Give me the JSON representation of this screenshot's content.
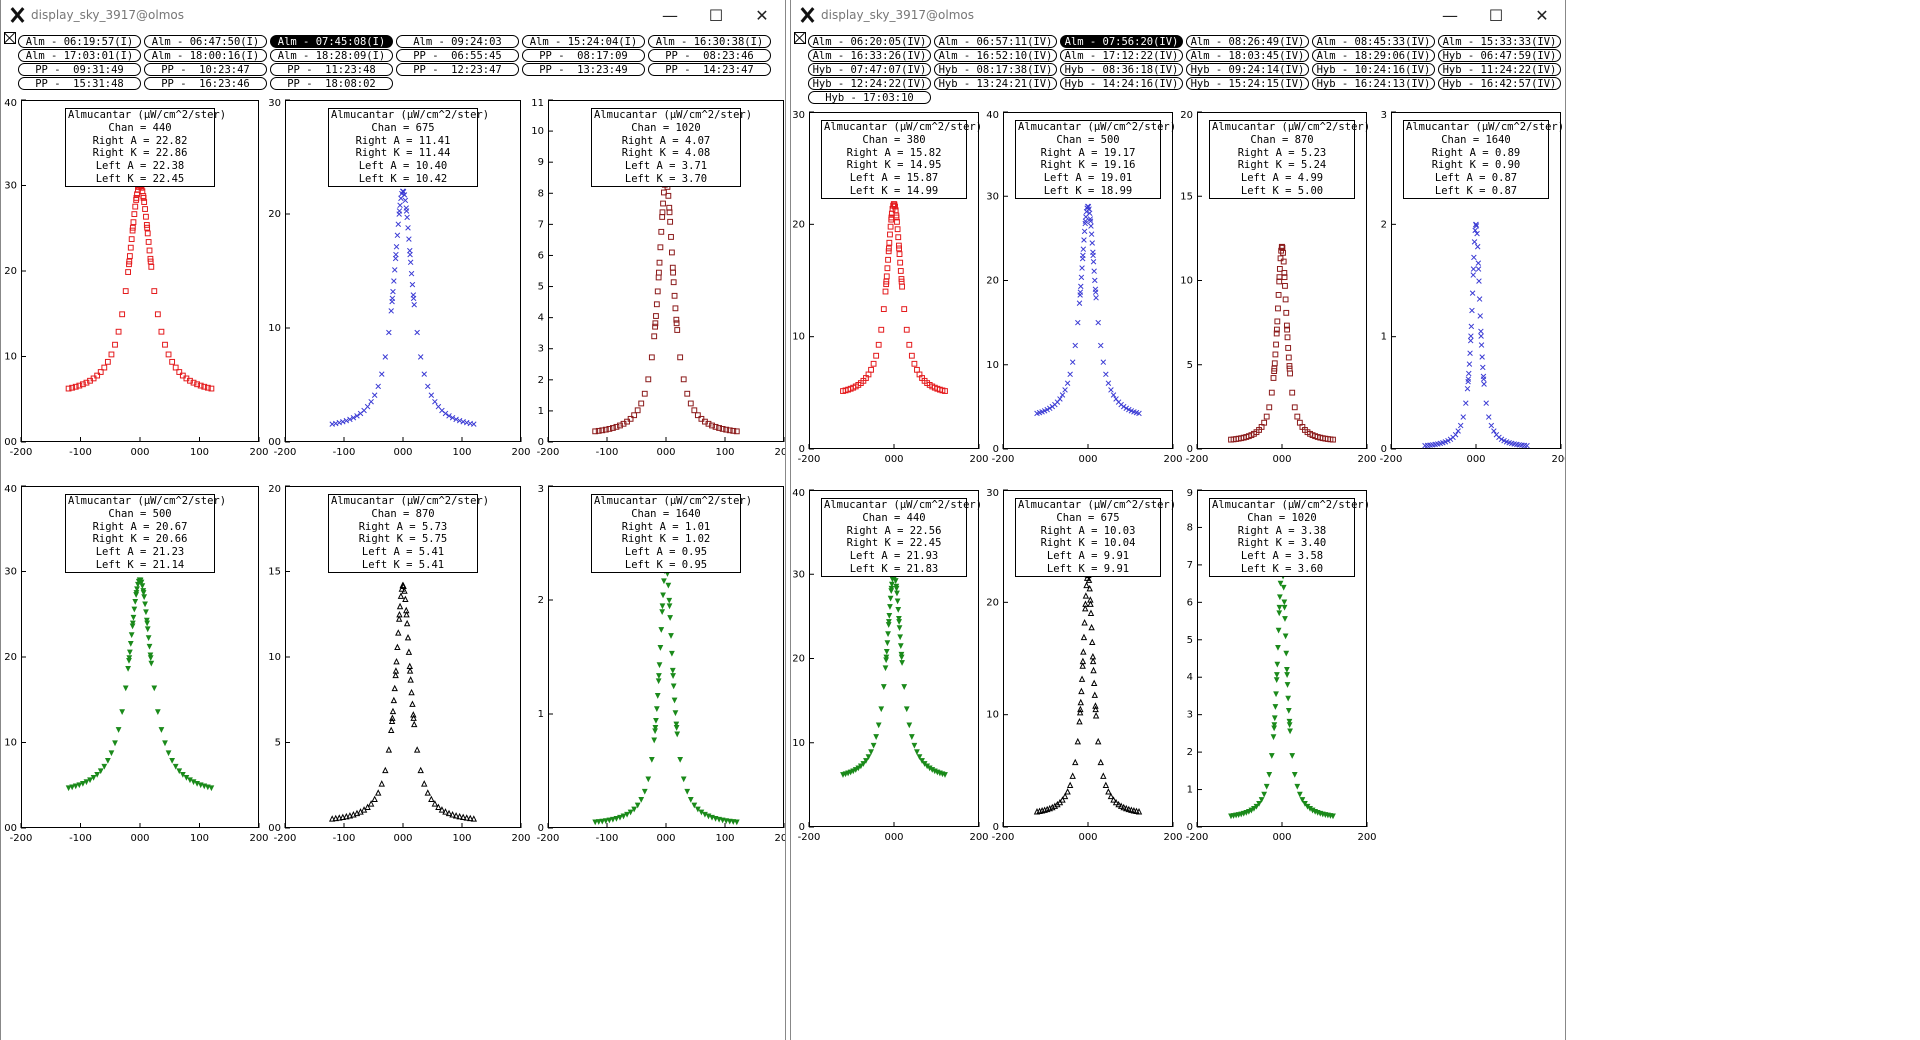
{
  "windows": [
    {
      "title": "display_sky_3917@olmos",
      "controls": {
        "minimize": "—",
        "maximize": "☐",
        "close": "✕"
      },
      "button_rows": [
        [
          "Alm - 06:19:57(I)",
          "Alm - 06:47:50(I)",
          "Alm - 07:45:08(I)",
          "Alm - 09:24:03",
          "Alm - 15:24:04(I)",
          "Alm - 16:30:38(I)"
        ],
        [
          "Alm - 17:03:01(I)",
          "Alm - 18:00:16(I)",
          "Alm - 18:28:09(I)",
          "PP -  06:55:45",
          "PP -  08:17:09",
          "PP -  08:23:46"
        ],
        [
          "PP -  09:31:49",
          "PP -  10:23:47",
          "PP -  11:23:48",
          "PP -  12:23:47",
          "PP -  13:23:49",
          "PP -  14:23:47"
        ],
        [
          "PP -  15:31:48",
          "PP -  16:23:46",
          "PP -  18:08:02"
        ]
      ],
      "selected_button": "Alm - 07:45:08(I)"
    },
    {
      "title": "display_sky_3917@olmos",
      "controls": {
        "minimize": "—",
        "maximize": "☐",
        "close": "✕"
      },
      "button_rows": [
        [
          "Alm - 06:20:05(IV)",
          "Alm - 06:57:11(IV)",
          "Alm - 07:56:20(IV)",
          "Alm - 08:26:49(IV)",
          "Alm - 08:45:33(IV)",
          "Alm - 15:33:33(IV)"
        ],
        [
          "Alm - 16:33:26(IV)",
          "Alm - 16:52:10(IV)",
          "Alm - 17:12:22(IV)",
          "Alm - 18:03:45(IV)",
          "Alm - 18:29:06(IV)",
          "Hyb - 06:47:59(IV)"
        ],
        [
          "Hyb - 07:47:07(IV)",
          "Hyb - 08:17:38(IV)",
          "Hyb - 08:36:18(IV)",
          "Hyb - 09:24:14(IV)",
          "Hyb - 10:24:16(IV)",
          "Hyb - 11:24:22(IV)"
        ],
        [
          "Hyb - 12:24:22(IV)",
          "Hyb - 13:24:21(IV)",
          "Hyb - 14:24:16(IV)",
          "Hyb - 15:24:15(IV)",
          "Hyb - 16:24:13(IV)",
          "Hyb - 16:42:57(IV)"
        ],
        [
          "Hyb - 17:03:10"
        ]
      ],
      "selected_button": "Alm - 07:56:20(IV)"
    }
  ],
  "colors": {
    "red": "#e41a1c",
    "blue": "#3b3bd4",
    "darkred": "#8b1a1a",
    "green": "#1a8a1a",
    "black": "#000000"
  },
  "chart_data": [
    {
      "type": "scatter",
      "window": 0,
      "marker": "square",
      "color": "#e41a1c",
      "peak": 30.0,
      "floor": 5.3,
      "width": 24,
      "ylim": [
        0,
        40
      ],
      "xlim": [
        -200,
        200
      ],
      "yticks": [
        "00",
        "10",
        "20",
        "30",
        "40"
      ],
      "xticks": [
        "-200",
        "-100",
        "000",
        "100",
        "200"
      ],
      "legend": [
        "Almucantar (µW/cm^2/ster)",
        "Chan = 440",
        "Right A = 22.82",
        "Right K = 22.86",
        "Left A = 22.38",
        "Left K = 22.45"
      ]
    },
    {
      "type": "scatter",
      "window": 0,
      "marker": "x",
      "color": "#3b3bd4",
      "peak": 22.0,
      "floor": 1.0,
      "width": 20,
      "ylim": [
        0,
        30
      ],
      "xlim": [
        -200,
        200
      ],
      "yticks": [
        "00",
        "10",
        "20",
        "30"
      ],
      "xticks": [
        "-200",
        "-100",
        "000",
        "100",
        "200"
      ],
      "legend": [
        "Almucantar (µW/cm^2/ster)",
        "Chan = 675",
        "Right A = 11.41",
        "Right K = 11.44",
        "Left A = 10.40",
        "Left K = 10.42"
      ]
    },
    {
      "type": "scatter",
      "window": 0,
      "marker": "square",
      "color": "#8b1a1a",
      "peak": 8.4,
      "floor": 0.2,
      "width": 16,
      "ylim": [
        0,
        11
      ],
      "xlim": [
        -200,
        200
      ],
      "yticks": [
        "0",
        "1",
        "2",
        "3",
        "4",
        "5",
        "6",
        "7",
        "8",
        "9",
        "10",
        "11"
      ],
      "xticks": [
        "-200",
        "-100",
        "000",
        "100",
        "200"
      ],
      "legend": [
        "Almucantar (µW/cm^2/ster)",
        "Chan = 1020",
        "Right A = 4.07",
        "Right K = 4.08",
        "Left A = 3.71",
        "Left K = 3.70"
      ]
    },
    {
      "type": "scatter",
      "window": 0,
      "marker": "tri-down",
      "color": "#1a8a1a",
      "peak": 29.0,
      "floor": 3.7,
      "width": 24,
      "ylim": [
        0,
        40
      ],
      "xlim": [
        -200,
        200
      ],
      "yticks": [
        "00",
        "10",
        "20",
        "30",
        "40"
      ],
      "xticks": [
        "-200",
        "-100",
        "000",
        "100",
        "200"
      ],
      "legend": [
        "Almucantar (µW/cm^2/ster)",
        "Chan = 500",
        "Right A = 20.67",
        "Right K = 20.66",
        "Left A = 21.23",
        "Left K = 21.14"
      ]
    },
    {
      "type": "scatter",
      "window": 0,
      "marker": "tri-up",
      "color": "#000000",
      "peak": 14.2,
      "floor": 0.3,
      "width": 16,
      "ylim": [
        0,
        20
      ],
      "xlim": [
        -200,
        200
      ],
      "yticks": [
        "00",
        "5",
        "10",
        "15",
        "20"
      ],
      "xticks": [
        "-200",
        "-100",
        "000",
        "100",
        "200"
      ],
      "legend": [
        "Almucantar (µW/cm^2/ster)",
        "Chan = 870",
        "Right A = 5.73",
        "Right K = 5.75",
        "Left A = 5.41",
        "Left K = 5.41"
      ]
    },
    {
      "type": "scatter",
      "window": 0,
      "marker": "tri-down",
      "color": "#1a8a1a",
      "peak": 2.3,
      "floor": 0.02,
      "width": 14,
      "ylim": [
        0,
        3
      ],
      "xlim": [
        -200,
        200
      ],
      "yticks": [
        "0",
        "1",
        "2",
        "3"
      ],
      "xticks": [
        "-200",
        "-100",
        "000",
        "100",
        "200"
      ],
      "legend": [
        "Almucantar (µW/cm^2/ster)",
        "Chan = 1640",
        "Right A = 1.01",
        "Right K = 1.02",
        "Left A = 0.95",
        "Left K = 0.95"
      ]
    },
    {
      "type": "scatter",
      "window": 1,
      "marker": "square",
      "color": "#e41a1c",
      "peak": 21.8,
      "floor": 4.6,
      "width": 22,
      "ylim": [
        0,
        30
      ],
      "xlim": [
        -200,
        200
      ],
      "yticks": [
        "0",
        "10",
        "20",
        "30"
      ],
      "xticks": [
        "-200",
        "000",
        "200"
      ],
      "legend": [
        "Almucantar (µW/cm^2/ster)",
        "Chan = 380",
        "Right A = 15.82",
        "Right K = 14.95",
        "Left A = 15.87",
        "Left K = 14.99"
      ]
    },
    {
      "type": "scatter",
      "window": 1,
      "marker": "x",
      "color": "#3b3bd4",
      "peak": 28.8,
      "floor": 3.4,
      "width": 22,
      "ylim": [
        0,
        40
      ],
      "xlim": [
        -200,
        200
      ],
      "yticks": [
        "0",
        "10",
        "20",
        "30",
        "40"
      ],
      "xticks": [
        "-200",
        "000",
        "200"
      ],
      "legend": [
        "Almucantar (µW/cm^2/ster)",
        "Chan = 500",
        "Right A = 19.17",
        "Right K = 19.16",
        "Left A = 19.01",
        "Left K = 18.99"
      ]
    },
    {
      "type": "scatter",
      "window": 1,
      "marker": "square",
      "color": "#8b1a1a",
      "peak": 12.0,
      "floor": 0.4,
      "width": 14,
      "ylim": [
        0,
        20
      ],
      "xlim": [
        -200,
        200
      ],
      "yticks": [
        "0",
        "5",
        "10",
        "15",
        "20"
      ],
      "xticks": [
        "-200",
        "000",
        "200"
      ],
      "legend": [
        "Almucantar (µW/cm^2/ster)",
        "Chan = 870",
        "Right A = 5.23",
        "Right K = 5.24",
        "Left A = 4.99",
        "Left K = 5.00"
      ]
    },
    {
      "type": "scatter",
      "window": 1,
      "marker": "x",
      "color": "#3b3bd4",
      "peak": 2.0,
      "floor": 0.01,
      "width": 12,
      "ylim": [
        0,
        3
      ],
      "xlim": [
        -200,
        200
      ],
      "yticks": [
        "0",
        "1",
        "2",
        "3"
      ],
      "xticks": [
        "-200",
        "000",
        "200"
      ],
      "legend": [
        "Almucantar (µW/cm^2/ster)",
        "Chan = 1640",
        "Right A = 0.89",
        "Right K = 0.90",
        "Left A = 0.87",
        "Left K = 0.87"
      ]
    },
    {
      "type": "scatter",
      "window": 1,
      "marker": "tri-down",
      "color": "#1a8a1a",
      "peak": 30.0,
      "floor": 5.4,
      "width": 22,
      "ylim": [
        0,
        40
      ],
      "xlim": [
        -200,
        200
      ],
      "yticks": [
        "0",
        "10",
        "20",
        "30",
        "40"
      ],
      "xticks": [
        "-200",
        "000",
        "200"
      ],
      "legend": [
        "Almucantar (µW/cm^2/ster)",
        "Chan = 440",
        "Right A = 22.56",
        "Right K = 22.45",
        "Left A = 21.93",
        "Left K = 21.83"
      ]
    },
    {
      "type": "scatter",
      "window": 1,
      "marker": "tri-up",
      "color": "#000000",
      "peak": 22.5,
      "floor": 1.0,
      "width": 16,
      "ylim": [
        0,
        30
      ],
      "xlim": [
        -200,
        200
      ],
      "yticks": [
        "0",
        "10",
        "20",
        "30"
      ],
      "xticks": [
        "-200",
        "000",
        "200"
      ],
      "legend": [
        "Almucantar (µW/cm^2/ster)",
        "Chan = 675",
        "Right A = 10.03",
        "Right K = 10.04",
        "Left A = 9.91",
        "Left K = 9.91"
      ]
    },
    {
      "type": "scatter",
      "window": 1,
      "marker": "tri-down",
      "color": "#1a8a1a",
      "peak": 6.9,
      "floor": 0.2,
      "width": 14,
      "ylim": [
        0,
        9
      ],
      "xlim": [
        -200,
        200
      ],
      "yticks": [
        "0",
        "1",
        "2",
        "3",
        "4",
        "5",
        "6",
        "7",
        "8",
        "9"
      ],
      "xticks": [
        "-200",
        "000",
        "200"
      ],
      "legend": [
        "Almucantar (µW/cm^2/ster)",
        "Chan = 1020",
        "Right A = 3.38",
        "Right K = 3.40",
        "Left A = 3.58",
        "Left K = 3.60"
      ]
    }
  ]
}
